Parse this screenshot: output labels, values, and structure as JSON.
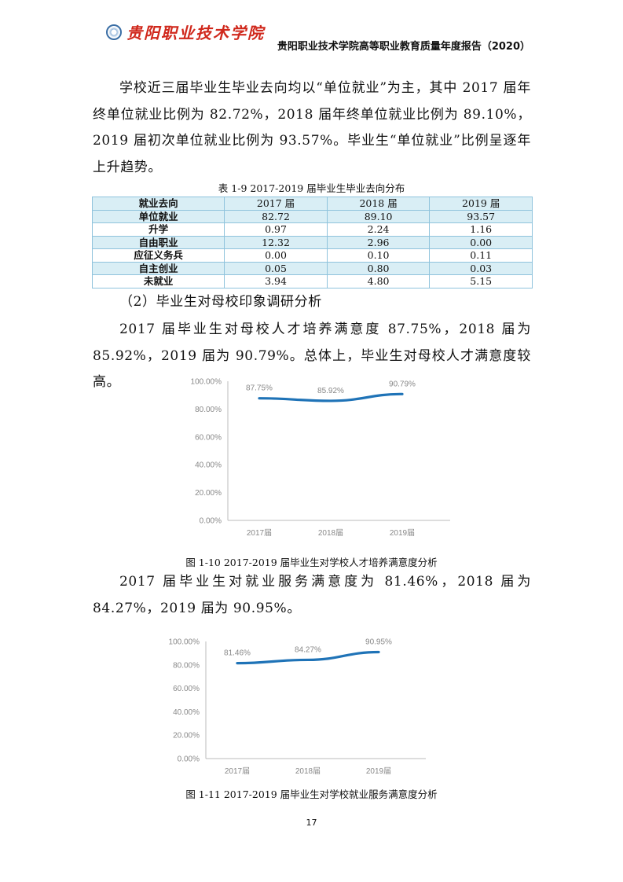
{
  "header": {
    "logo_text": "贵阳职业技术学院",
    "title": "贵阳职业技术学院高等职业教育质量年度报告（2020）"
  },
  "para1": "学校近三届毕业生毕业去向均以“单位就业”为主，其中 2017 届年终单位就业比例为 82.72%，2018 届年终单位就业比例为 89.10%，2019 届初次单位就业比例为 93.57%。毕业生“单位就业”比例呈逐年上升趋势。",
  "table": {
    "caption": "表 1-9 2017-2019 届毕业生毕业去向分布",
    "headers": [
      "就业去向",
      "2017 届",
      "2018 届",
      "2019 届"
    ],
    "rows": [
      [
        "单位就业",
        "82.72",
        "89.10",
        "93.57"
      ],
      [
        "升学",
        "0.97",
        "2.24",
        "1.16"
      ],
      [
        "自由职业",
        "12.32",
        "2.96",
        "0.00"
      ],
      [
        "应征义务兵",
        "0.00",
        "0.10",
        "0.11"
      ],
      [
        "自主创业",
        "0.05",
        "0.80",
        "0.03"
      ],
      [
        "未就业",
        "3.94",
        "4.80",
        "5.15"
      ]
    ],
    "stripe_color": "#d9eef5"
  },
  "section_heading": "（2）毕业生对母校印象调研分析",
  "para2": "2017 届毕业生对母校人才培养满意度 87.75%，2018 届为 85.92%，2019 届为 90.79%。总体上，毕业生对母校人才满意度较高。",
  "para3": "2017 届毕业生对就业服务满意度为 81.46%，2018 届为 84.27%，2019 届为 90.95%。",
  "chart_data": [
    {
      "type": "line",
      "categories": [
        "2017届",
        "2018届",
        "2019届"
      ],
      "values": [
        87.75,
        85.92,
        90.79
      ],
      "data_labels": [
        "87.75%",
        "85.92%",
        "90.79%"
      ],
      "yticks": [
        "0.00%",
        "20.00%",
        "40.00%",
        "60.00%",
        "80.00%",
        "100.00%"
      ],
      "ylim": [
        0,
        100
      ],
      "grid": false,
      "line_color": "#1f73b7",
      "smooth": true,
      "caption": "图 1-10 2017-2019 届毕业生对学校人才培养满意度分析"
    },
    {
      "type": "line",
      "categories": [
        "2017届",
        "2018届",
        "2019届"
      ],
      "values": [
        81.46,
        84.27,
        90.95
      ],
      "data_labels": [
        "81.46%",
        "84.27%",
        "90.95%"
      ],
      "yticks": [
        "0.00%",
        "20.00%",
        "40.00%",
        "60.00%",
        "80.00%",
        "100.00%"
      ],
      "ylim": [
        0,
        100
      ],
      "grid": false,
      "line_color": "#1f73b7",
      "smooth": true,
      "caption": "图 1-11 2017-2019 届毕业生对学校就业服务满意度分析"
    }
  ],
  "page_number": "17"
}
